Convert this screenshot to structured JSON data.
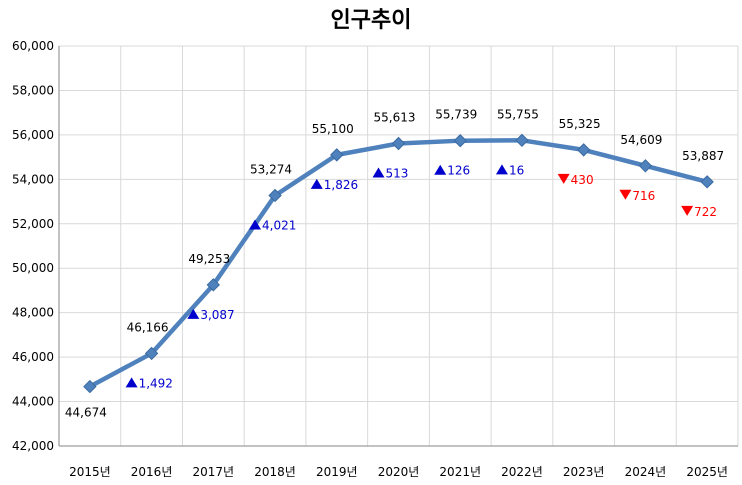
{
  "chart_data": {
    "type": "line",
    "title": "인구추이",
    "categories": [
      "2015년",
      "2016년",
      "2017년",
      "2018년",
      "2019년",
      "2020년",
      "2021년",
      "2022년",
      "2023년",
      "2024년",
      "2025년"
    ],
    "values": [
      44674,
      46166,
      49253,
      53274,
      55100,
      55613,
      55739,
      55755,
      55325,
      54609,
      53887
    ],
    "value_labels": [
      "44,674",
      "46,166",
      "49,253",
      "53,274",
      "55,100",
      "55,613",
      "55,739",
      "55,755",
      "55,325",
      "54,609",
      "53,887"
    ],
    "changes": [
      null,
      {
        "dir": "up",
        "text": "1,492"
      },
      {
        "dir": "up",
        "text": "3,087"
      },
      {
        "dir": "up",
        "text": "4,021"
      },
      {
        "dir": "up",
        "text": "1,826"
      },
      {
        "dir": "up",
        "text": "513"
      },
      {
        "dir": "up",
        "text": "126"
      },
      {
        "dir": "up",
        "text": "16"
      },
      {
        "dir": "down",
        "text": "430"
      },
      {
        "dir": "down",
        "text": "716"
      },
      {
        "dir": "down",
        "text": "722"
      }
    ],
    "ylim": [
      42000,
      60000
    ],
    "yticks": [
      42000,
      44000,
      46000,
      48000,
      50000,
      52000,
      54000,
      56000,
      58000,
      60000
    ],
    "ytick_labels": [
      "42,000",
      "44,000",
      "46,000",
      "48,000",
      "50,000",
      "52,000",
      "54,000",
      "56,000",
      "58,000",
      "60,000"
    ],
    "grid": true,
    "xlabel": "",
    "ylabel": "",
    "colors": {
      "line": "#4F81BD",
      "up": "#0000CC",
      "down": "#FF0000",
      "grid": "#D9D9D9"
    }
  }
}
